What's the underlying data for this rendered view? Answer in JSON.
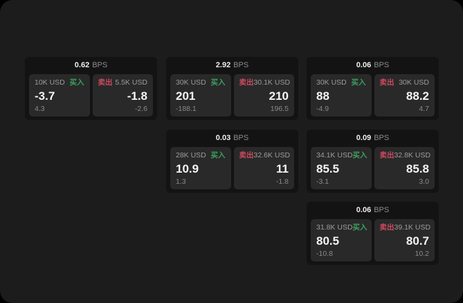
{
  "labels": {
    "bps_unit": "BPS",
    "buy": "买入",
    "sell": "卖出"
  },
  "colors": {
    "page_background": "#000000",
    "surface": "#1c1c1c",
    "card_background": "#131313",
    "panel_background": "#292929",
    "buy_green": "#3aa061",
    "sell_red": "#cc4a60",
    "primary_text": "#f5f5f5",
    "secondary_text": "#9c9c9c"
  },
  "cards": [
    {
      "bps": "0.62",
      "buy": {
        "amount": "10K USD",
        "price": "-3.7",
        "change": "4.3"
      },
      "sell": {
        "amount": "5.5K USD",
        "price": "-1.8",
        "change": "-2.6"
      }
    },
    {
      "bps": "2.92",
      "buy": {
        "amount": "30K USD",
        "price": "201",
        "change": "-188.1"
      },
      "sell": {
        "amount": "30.1K USD",
        "price": "210",
        "change": "196.5"
      }
    },
    {
      "bps": "0.06",
      "buy": {
        "amount": "30K USD",
        "price": "88",
        "change": "-4.9"
      },
      "sell": {
        "amount": "30K USD",
        "price": "88.2",
        "change": "4.7"
      }
    },
    {
      "bps": "0.03",
      "buy": {
        "amount": "28K USD",
        "price": "10.9",
        "change": "1.3"
      },
      "sell": {
        "amount": "32.6K USD",
        "price": "11",
        "change": "-1.8"
      }
    },
    {
      "bps": "0.09",
      "buy": {
        "amount": "34.1K USD",
        "price": "85.5",
        "change": "-3.1"
      },
      "sell": {
        "amount": "32.8K USD",
        "price": "85.8",
        "change": "3.0"
      }
    },
    {
      "bps": "0.06",
      "buy": {
        "amount": "31.8K USD",
        "price": "80.5",
        "change": "-10.8"
      },
      "sell": {
        "amount": "39.1K USD",
        "price": "80.7",
        "change": "10.2"
      }
    }
  ]
}
